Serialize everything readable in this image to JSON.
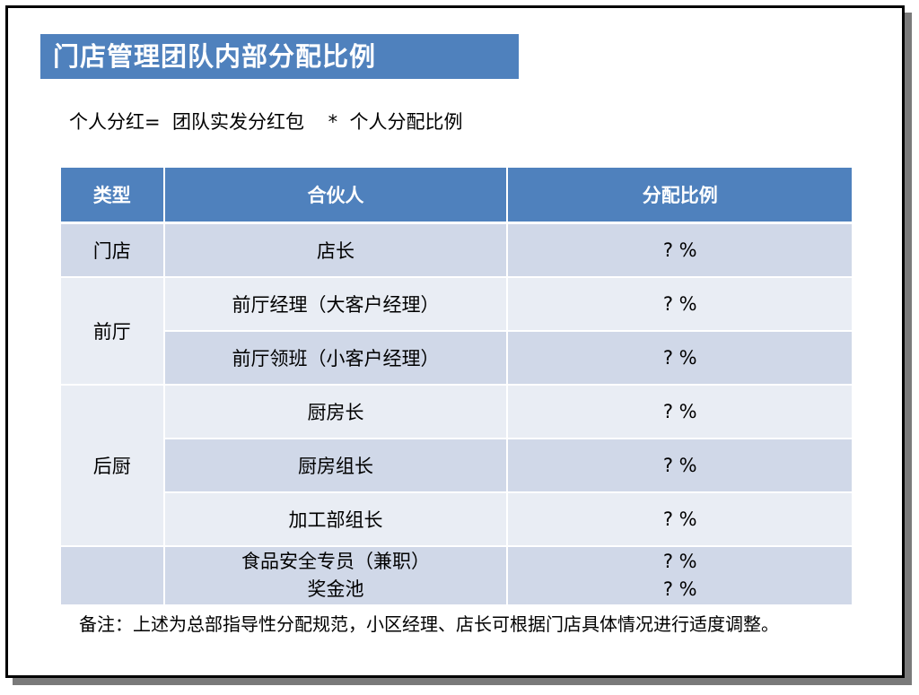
{
  "title": "门店管理团队内部分配比例",
  "formula": "个人分红=  团队实发分红包    *  个人分配比例",
  "table": {
    "headers": [
      "类型",
      "合伙人",
      "分配比例"
    ],
    "rows": {
      "store": {
        "type": "门店",
        "partner": "店长",
        "ratio": "? %"
      },
      "front_1": {
        "type": "前厅",
        "partner": "前厅经理（大客户经理）",
        "ratio": "? %"
      },
      "front_2": {
        "partner": "前厅领班（小客户经理）",
        "ratio": "? %"
      },
      "kitchen_1": {
        "type": "后厨",
        "partner": "厨房长",
        "ratio": "? %"
      },
      "kitchen_2": {
        "partner": "厨房组长",
        "ratio": "? %"
      },
      "kitchen_3": {
        "partner": "加工部组长",
        "ratio": "? %"
      },
      "other": {
        "type": "",
        "partner_1": "食品安全专员（兼职）",
        "partner_2": "奖金池",
        "ratio_1": "? %",
        "ratio_2": "? %"
      }
    }
  },
  "note": "备注：上述为总部指导性分配规范，小区经理、店长可根据门店具体情况进行适度调整。"
}
